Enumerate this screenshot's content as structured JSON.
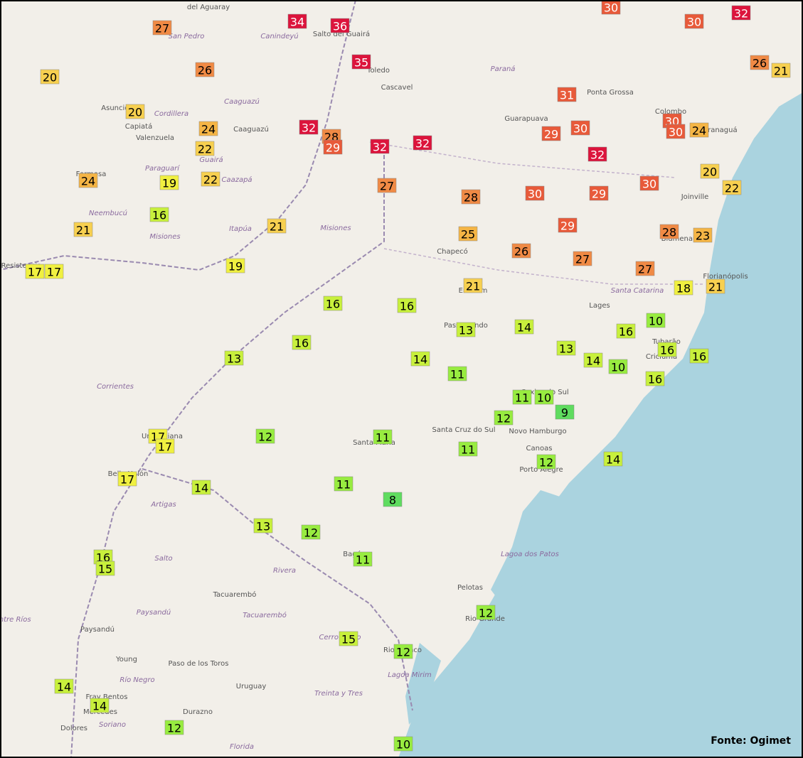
{
  "map": {
    "places": [
      "San Pedro",
      "Canindeyú",
      "Salto del Guairá",
      "Toledo",
      "Paraná",
      "Cascavel",
      "Ponta Grossa",
      "Guarapuava",
      "Colombo",
      "Paranaguá",
      "Cordillera",
      "Caaguazú",
      "Caaguazú",
      "Asunción",
      "Capiatá",
      "Valenzuela",
      "Guairá",
      "Paraguarí",
      "Caazapá",
      "Formosa",
      "Neembucú",
      "Itapúa",
      "Misiones",
      "Misiones",
      "Joinville",
      "Chapecó",
      "Blumenau",
      "Florianópolis",
      "Santa Catarina",
      "Lages",
      "Erechim",
      "Passo Fundo",
      "Tubarão",
      "Criciúma",
      "Corrientes",
      "Caxias do Sul",
      "Santa Cruz do Sul",
      "Novo Hamburgo",
      "Santa Maria",
      "Canoas",
      "Porto Alegre",
      "Uruguaiana",
      "Bella Unión",
      "Artigas",
      "Salto",
      "Rivera",
      "Bagé",
      "Lagoa dos Patos",
      "Tacuarembó",
      "Paysandú",
      "Paysandú",
      "Tacuarembó",
      "Pelotas",
      "Rio Grande",
      "Cerro Largo",
      "Rio Branco",
      "Young",
      "Paso de los Toros",
      "Río Negro",
      "Uruguay",
      "Treinta y Tres",
      "Lagoa Mirim",
      "Fray Bentos",
      "Mercedes",
      "Durazno",
      "Soriano",
      "Dolores",
      "Florida",
      "Entre Ríos",
      "Resistencia",
      "del Aguaray"
    ],
    "markers": [
      27,
      34,
      36,
      30,
      30,
      32,
      26,
      35,
      26,
      21,
      20,
      20,
      31,
      32,
      28,
      29,
      32,
      32,
      29,
      30,
      32,
      30,
      30,
      24,
      24,
      22,
      24,
      19,
      22,
      27,
      28,
      30,
      29,
      30,
      20,
      22,
      16,
      21,
      21,
      25,
      29,
      28,
      23,
      26,
      27,
      27,
      17,
      17,
      19,
      21,
      18,
      21,
      16,
      16,
      13,
      14,
      10,
      16,
      16,
      13,
      14,
      13,
      14,
      10,
      16,
      16,
      11,
      16,
      11,
      10,
      9,
      12,
      12,
      11,
      11,
      17,
      17,
      17,
      14,
      11,
      8,
      12,
      14,
      13,
      12,
      11,
      16,
      15,
      12,
      15,
      12,
      14,
      14,
      12,
      10
    ]
  },
  "source": "Fonte: Ogimet"
}
